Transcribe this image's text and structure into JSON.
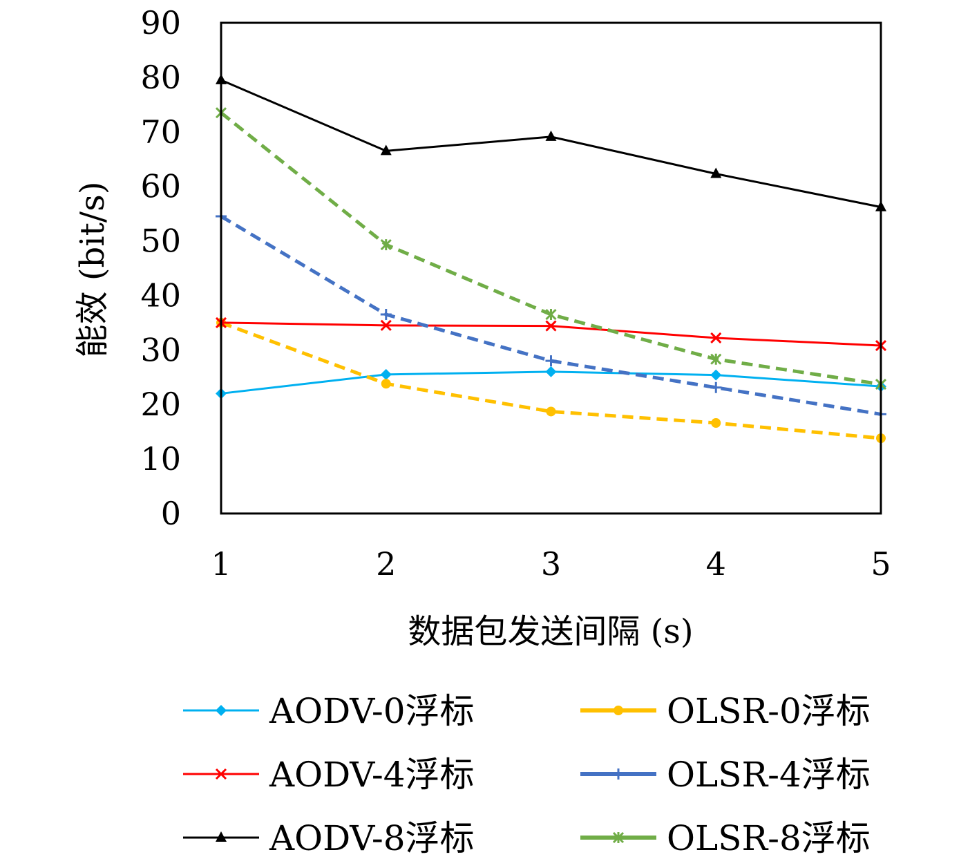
{
  "chart_data": {
    "type": "line",
    "xlabel": "数据包发送间隔 (s)",
    "ylabel": "能效 (bit/s)",
    "x": [
      1,
      2,
      3,
      4,
      5
    ],
    "ylim": [
      0,
      90
    ],
    "yticks": [
      0,
      10,
      20,
      30,
      40,
      50,
      60,
      70,
      80,
      90
    ],
    "grid": false,
    "legend_position": "bottom",
    "series": [
      {
        "name": "AODV-0浮标",
        "values": [
          22.0,
          25.5,
          26.0,
          25.4,
          23.3
        ],
        "color": "#00B0F0",
        "marker": "diamond",
        "dash": "solid"
      },
      {
        "name": "OLSR-0浮标",
        "values": [
          35.0,
          23.8,
          18.7,
          16.6,
          13.8
        ],
        "color": "#FFC000",
        "marker": "circle",
        "dash": "dashed"
      },
      {
        "name": "AODV-4浮标",
        "values": [
          35.0,
          34.5,
          34.4,
          32.2,
          30.8
        ],
        "color": "#FF0000",
        "marker": "x",
        "dash": "solid"
      },
      {
        "name": "OLSR-4浮标",
        "values": [
          54.5,
          36.5,
          28.0,
          23.1,
          18.2
        ],
        "color": "#4472C4",
        "marker": "plus",
        "dash": "dashed"
      },
      {
        "name": "AODV-8浮标",
        "values": [
          79.5,
          66.5,
          69.1,
          62.3,
          56.2
        ],
        "color": "#000000",
        "marker": "triangle",
        "dash": "solid"
      },
      {
        "name": "OLSR-8浮标",
        "values": [
          73.5,
          49.3,
          36.5,
          28.3,
          23.7
        ],
        "color": "#70AD47",
        "marker": "asterisk",
        "dash": "dashed"
      }
    ]
  }
}
